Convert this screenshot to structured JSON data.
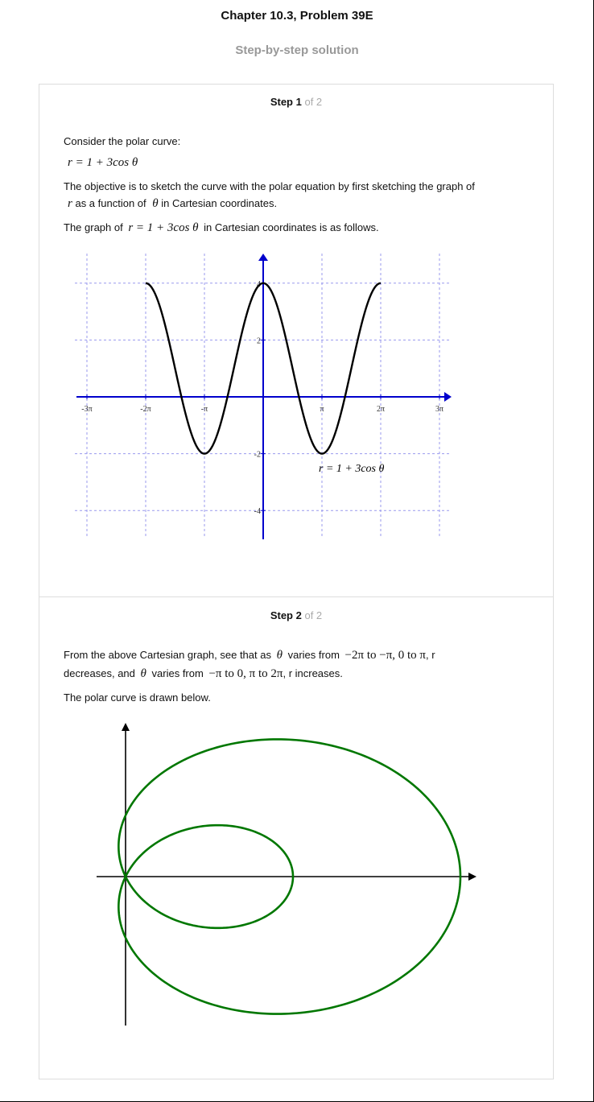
{
  "header": {
    "title": "Chapter 10.3, Problem 39E",
    "subtitle": "Step-by-step solution"
  },
  "step1": {
    "label": "Step 1",
    "of": "of 2",
    "consider": "Consider the polar curve:",
    "equation": "r = 1 + 3cos θ",
    "objective_a": "The objective is to sketch the curve with the polar equation by first sketching the graph of",
    "objective_b_r": "r",
    "objective_b_mid": "as a function of",
    "objective_b_theta": "θ",
    "objective_b_end": "in Cartesian coordinates.",
    "graph_intro_a": "The graph of",
    "graph_intro_eq": "r = 1 + 3cos θ",
    "graph_intro_b": "in Cartesian coordinates is as follows."
  },
  "cartesian_graph": {
    "x_ticks": [
      "-3π",
      "-2π",
      "-π",
      "π",
      "2π",
      "3π"
    ],
    "y_ticks": [
      "4",
      "2",
      "-2",
      "-4"
    ],
    "curve_label": "r = 1 + 3cos θ",
    "colors": {
      "axis": "#0000cc",
      "grid": "#9999ee",
      "curve": "#000000"
    }
  },
  "chart_data": {
    "type": "line",
    "function": "r = 1 + 3cos θ",
    "x_range": [
      "-2π",
      "2π"
    ],
    "x": [
      -6.2832,
      -5.4978,
      -4.7124,
      -3.927,
      -3.1416,
      -2.3562,
      -1.5708,
      -0.7854,
      0,
      0.7854,
      1.5708,
      2.3562,
      3.1416,
      3.927,
      4.7124,
      5.4978,
      6.2832
    ],
    "y": [
      4,
      3.121,
      1,
      -1.121,
      -2,
      -1.121,
      1,
      3.121,
      4,
      3.121,
      1,
      -1.121,
      -2,
      -1.121,
      1,
      3.121,
      4
    ],
    "xlim": [
      "-3π",
      "3π"
    ],
    "ylim": [
      -5,
      5
    ],
    "grid": true
  },
  "step2": {
    "label": "Step 2",
    "of": "of 2",
    "line1_a": "From the above Cartesian graph, see that as",
    "line1_theta": "θ",
    "line1_b": "varies from",
    "line1_math": "−2π to −π, 0 to π",
    "line1_c": ", r",
    "line2_a": "decreases, and",
    "line2_theta": "θ",
    "line2_b": "varies from",
    "line2_math": "−π to 0, π to 2π",
    "line2_c": ", r increases.",
    "drawn_below": "The polar curve is drawn below."
  },
  "polar_graph": {
    "colors": {
      "axis": "#000000",
      "curve": "#007700"
    }
  }
}
